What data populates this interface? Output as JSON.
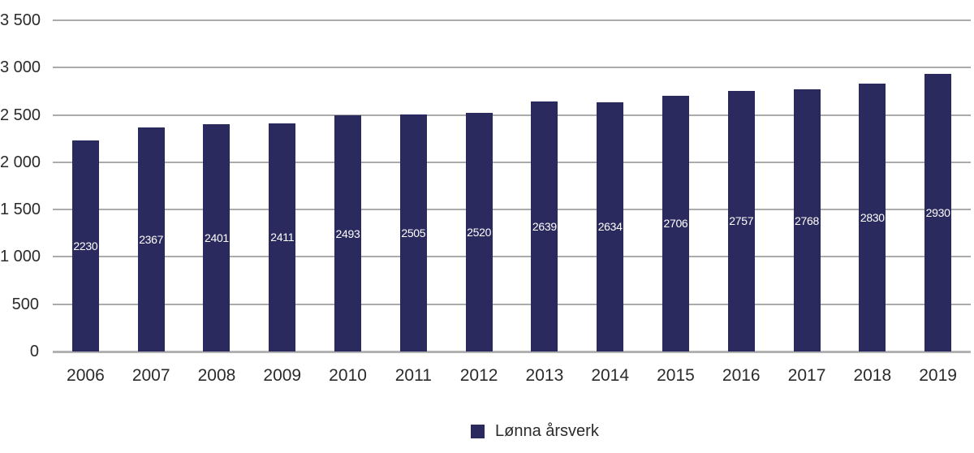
{
  "chart_data": {
    "type": "bar",
    "title": "",
    "legend": "Lønna årsverk",
    "legend_position": "bottom",
    "categories": [
      "2006",
      "2007",
      "2008",
      "2009",
      "2010",
      "2011",
      "2012",
      "2013",
      "2014",
      "2015",
      "2016",
      "2017",
      "2018",
      "2019"
    ],
    "values": [
      2230,
      2367,
      2401,
      2411,
      2493,
      2505,
      2520,
      2639,
      2634,
      2706,
      2757,
      2768,
      2830,
      2930
    ],
    "series": [
      {
        "name": "Lønna årsverk",
        "values": [
          2230,
          2367,
          2401,
          2411,
          2493,
          2505,
          2520,
          2639,
          2634,
          2706,
          2757,
          2768,
          2830,
          2930
        ]
      }
    ],
    "xlabel": "",
    "ylabel": "",
    "ylim": [
      0,
      3500
    ],
    "ytick_step": 500,
    "yticks": [
      "0",
      "500",
      "1 000",
      "1 500",
      "2 000",
      "2 500",
      "3 000",
      "3 500"
    ],
    "grid": true,
    "bar_value_labels_visible": true,
    "colors": {
      "bar": "#2a2a5e",
      "gridline": "#ababab",
      "axis_line": "#b2b2b2",
      "text": "#2b2b2b",
      "bar_label": "#ffffff"
    }
  }
}
